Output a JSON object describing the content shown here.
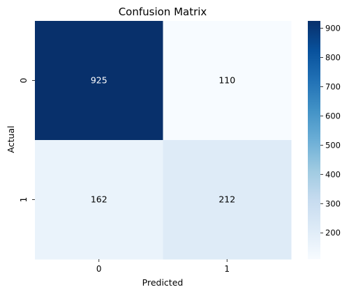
{
  "chart_data": {
    "type": "heatmap",
    "title": "Confusion Matrix",
    "xlabel": "Predicted",
    "ylabel": "Actual",
    "x_categories": [
      "0",
      "1"
    ],
    "y_categories": [
      "0",
      "1"
    ],
    "matrix": [
      [
        925,
        110
      ],
      [
        162,
        212
      ]
    ],
    "colormap": "Blues",
    "colorbar": {
      "range": [
        110,
        925
      ],
      "ticks": [
        200,
        300,
        400,
        500,
        600,
        700,
        800,
        900
      ]
    },
    "colors": {
      "min": "#f7fbff",
      "max": "#08306b",
      "text_dark": "#000000",
      "text_light": "#ffffff"
    }
  }
}
